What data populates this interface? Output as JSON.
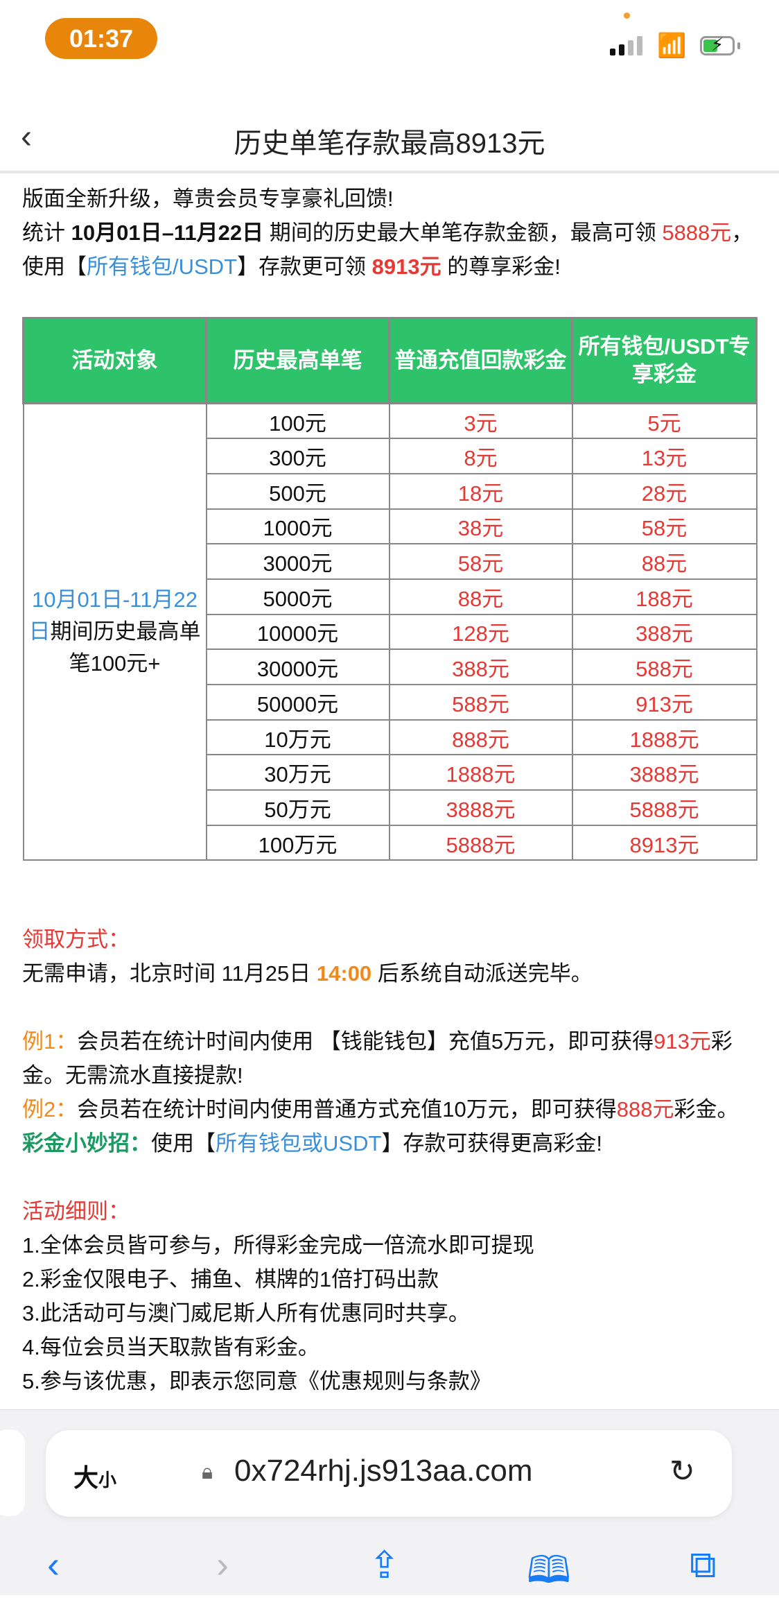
{
  "status": {
    "time": "01:37"
  },
  "nav": {
    "title": "历史单笔存款最高8913元"
  },
  "intro": {
    "line1": "版面全新升级，尊贵会员专享豪礼回馈!",
    "p_a": "统计 ",
    "dates": "10月01日–11月22日",
    "p_b": " 期间的历史最大单笔存款金额，最高可领 ",
    "amt1": "5888元",
    "p_c": "，使用【",
    "wallet": "所有钱包/USDT",
    "p_d": "】存款更可领 ",
    "amt2": "8913元",
    "p_e": " 的尊享彩金!"
  },
  "table": {
    "headers": [
      "活动对象",
      "历史最高单笔",
      "普通充值回款彩金",
      "所有钱包/USDT专享彩金"
    ],
    "target_blue": "10月01日-11月22日",
    "target_rest": "期间历史最高单笔100元+",
    "rows": [
      [
        "100元",
        "3元",
        "5元"
      ],
      [
        "300元",
        "8元",
        "13元"
      ],
      [
        "500元",
        "18元",
        "28元"
      ],
      [
        "1000元",
        "38元",
        "58元"
      ],
      [
        "3000元",
        "58元",
        "88元"
      ],
      [
        "5000元",
        "88元",
        "188元"
      ],
      [
        "10000元",
        "128元",
        "388元"
      ],
      [
        "30000元",
        "388元",
        "588元"
      ],
      [
        "50000元",
        "588元",
        "913元"
      ],
      [
        "10万元",
        "888元",
        "1888元"
      ],
      [
        "30万元",
        "1888元",
        "3888元"
      ],
      [
        "50万元",
        "3888元",
        "5888元"
      ],
      [
        "100万元",
        "5888元",
        "8913元"
      ]
    ]
  },
  "claim": {
    "heading": "领取方式：",
    "a": "无需申请，北京时间 11月25日 ",
    "time": "14:00",
    "b": " 后系统自动派送完毕。"
  },
  "ex1": {
    "label": "例1：",
    "a": "会员若在统计时间内使用 【钱能钱包】充值5万元，即可获得",
    "amt": "913元",
    "b": "彩金。无需流水直接提款!"
  },
  "ex2": {
    "label": "例2：",
    "a": "会员若在统计时间内使用普通方式充值10万元，即可获得",
    "amt": "888元",
    "b": "彩金。"
  },
  "tip": {
    "label": "彩金小妙招：",
    "a": "使用【",
    "link": "所有钱包或USDT",
    "b": "】存款可获得更高彩金!"
  },
  "rules": {
    "heading": "活动细则：",
    "items": [
      "1.全体会员皆可参与，所得彩金完成一倍流水即可提现",
      "2.彩金仅限电子、捕鱼、棋牌的1倍打码出款",
      "3.此活动可与澳门威尼斯人所有优惠同时共享。",
      "4.每位会员当天取款皆有彩金。",
      "5.参与该优惠，即表示您同意《优惠规则与条款》"
    ]
  },
  "browser": {
    "aa_big": "大",
    "aa_small": "小",
    "url": "0x724rhj.js913aa.com"
  },
  "colors": {
    "header_green": "#2ec26a",
    "red": "#e53935",
    "blue": "#3a8fd8",
    "orange": "#ef8a1a",
    "time_pill": "#e8850b"
  }
}
